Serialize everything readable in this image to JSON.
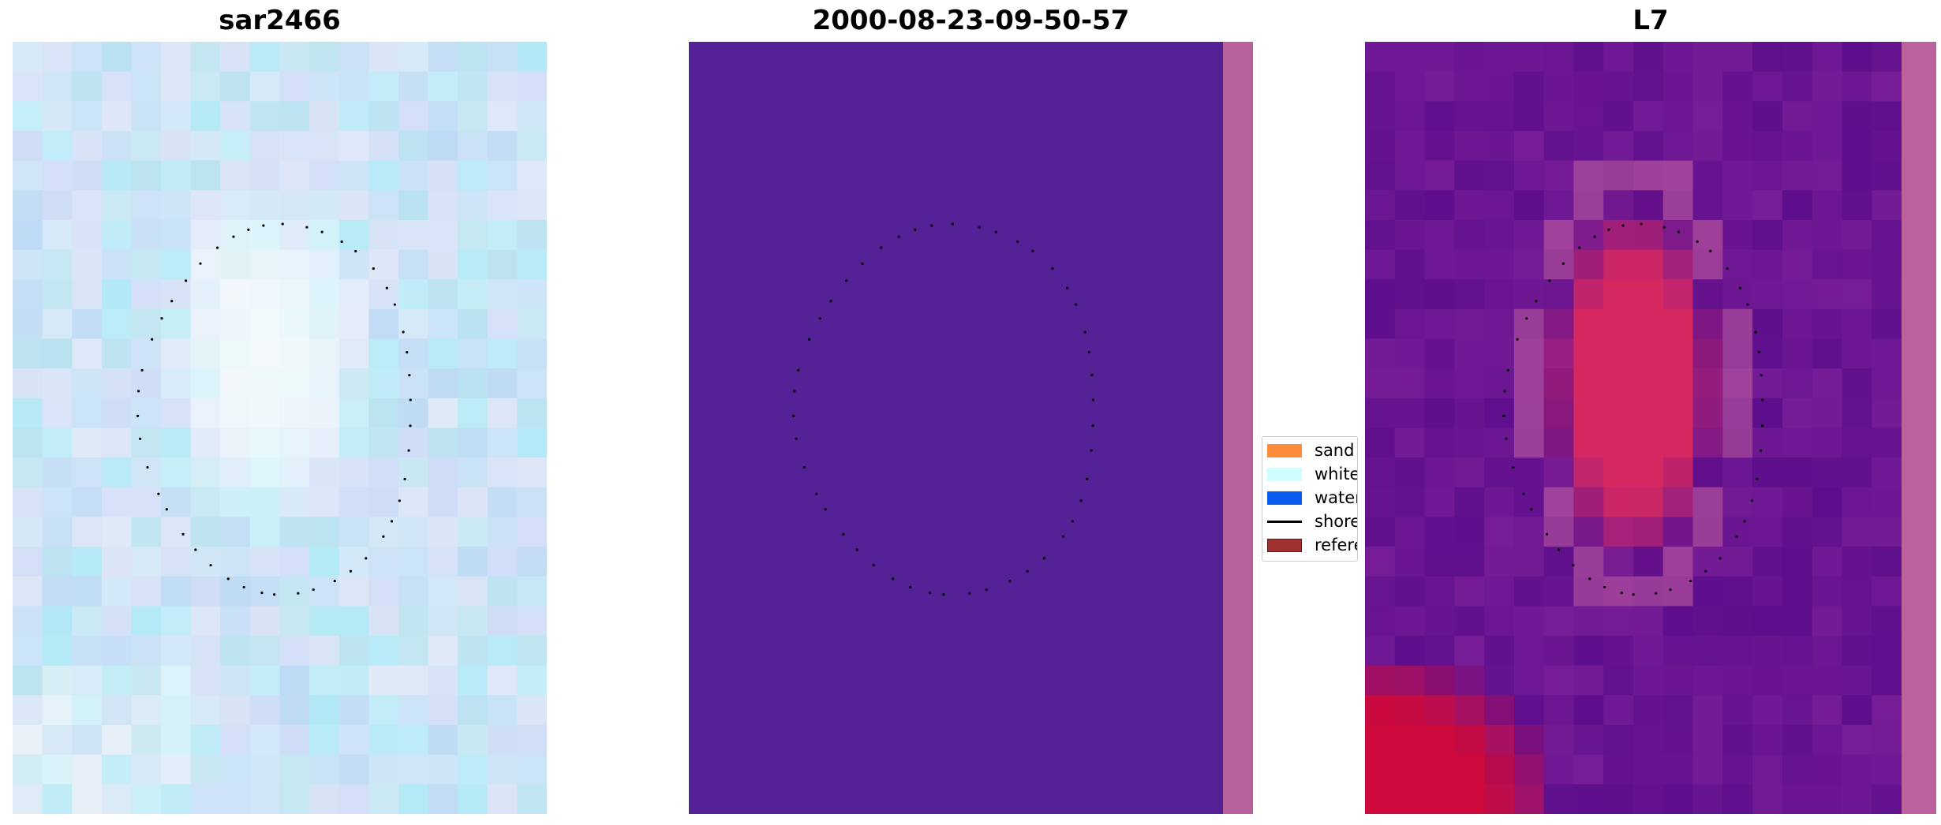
{
  "panels": [
    {
      "title": "sar2466"
    },
    {
      "title": "2000-08-23-09-50-57"
    },
    {
      "title": "L7"
    }
  ],
  "legend": {
    "items": [
      {
        "label": "sand",
        "color": "#ff8c3a",
        "kind": "patch"
      },
      {
        "label": "whitew",
        "color": "#ccfffd",
        "kind": "patch"
      },
      {
        "label": "water",
        "color": "#0a5cf0",
        "kind": "patch"
      },
      {
        "label": "shorel",
        "color": "#000000",
        "kind": "line"
      },
      {
        "label": "referer",
        "color": "#a23232",
        "kind": "patch"
      }
    ]
  },
  "colors": {
    "classified_background": "#552196",
    "classified_edge": "#b9619a",
    "shoreline_points": "#000000"
  }
}
